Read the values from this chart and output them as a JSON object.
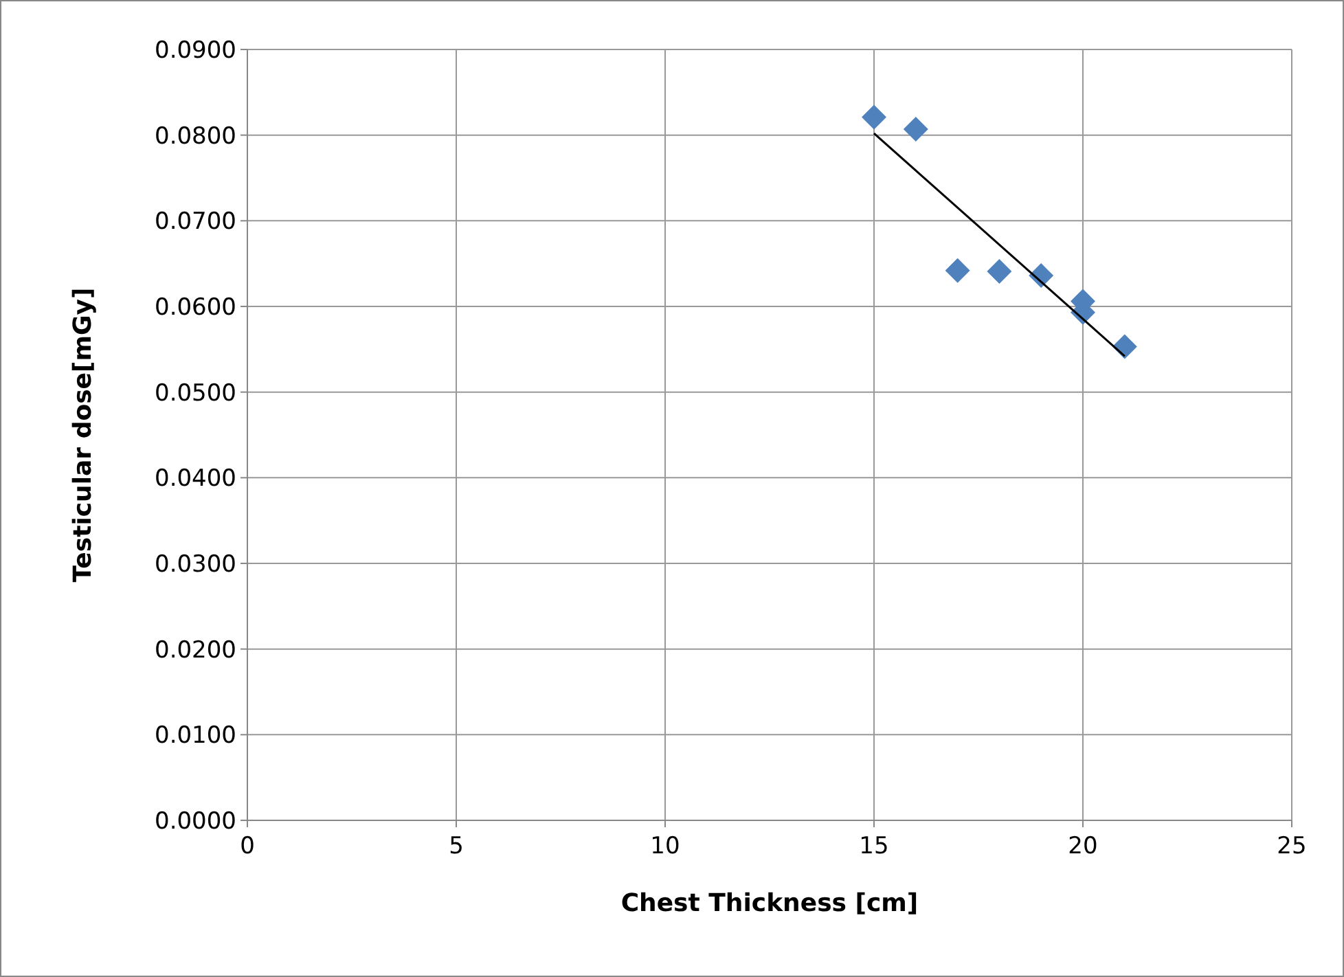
{
  "chart_data": {
    "type": "scatter",
    "xlabel": "Chest Thickness [cm]",
    "ylabel": "Testicular dose[mGy]",
    "xlim": [
      0,
      25
    ],
    "xticks": [
      0,
      5,
      10,
      15,
      20,
      25
    ],
    "ylim": [
      0,
      0.09
    ],
    "yticks": [
      {
        "value": 0,
        "label": "0.0000"
      },
      {
        "value": 0.01,
        "label": "0.0100"
      },
      {
        "value": 0.02,
        "label": "0.0200"
      },
      {
        "value": 0.03,
        "label": "0.0300"
      },
      {
        "value": 0.04,
        "label": "0.0400"
      },
      {
        "value": 0.05,
        "label": "0.0500"
      },
      {
        "value": 0.06,
        "label": "0.0600"
      },
      {
        "value": 0.07,
        "label": "0.0700"
      },
      {
        "value": 0.08,
        "label": "0.0800"
      },
      {
        "value": 0.09,
        "label": "0.0900"
      }
    ],
    "grid": true,
    "series": [
      {
        "marker": "diamond",
        "color": "#4f81bd",
        "x": [
          15,
          16,
          17,
          18,
          19,
          20,
          20,
          21
        ],
        "values": [
          0.0821,
          0.0807,
          0.0642,
          0.0641,
          0.0636,
          0.0606,
          0.0593,
          0.0553
        ]
      },
      {
        "type": "line",
        "marker": "none",
        "color": "#000000",
        "x": [
          15,
          21
        ],
        "values": [
          0.0802,
          0.0542
        ]
      }
    ]
  }
}
